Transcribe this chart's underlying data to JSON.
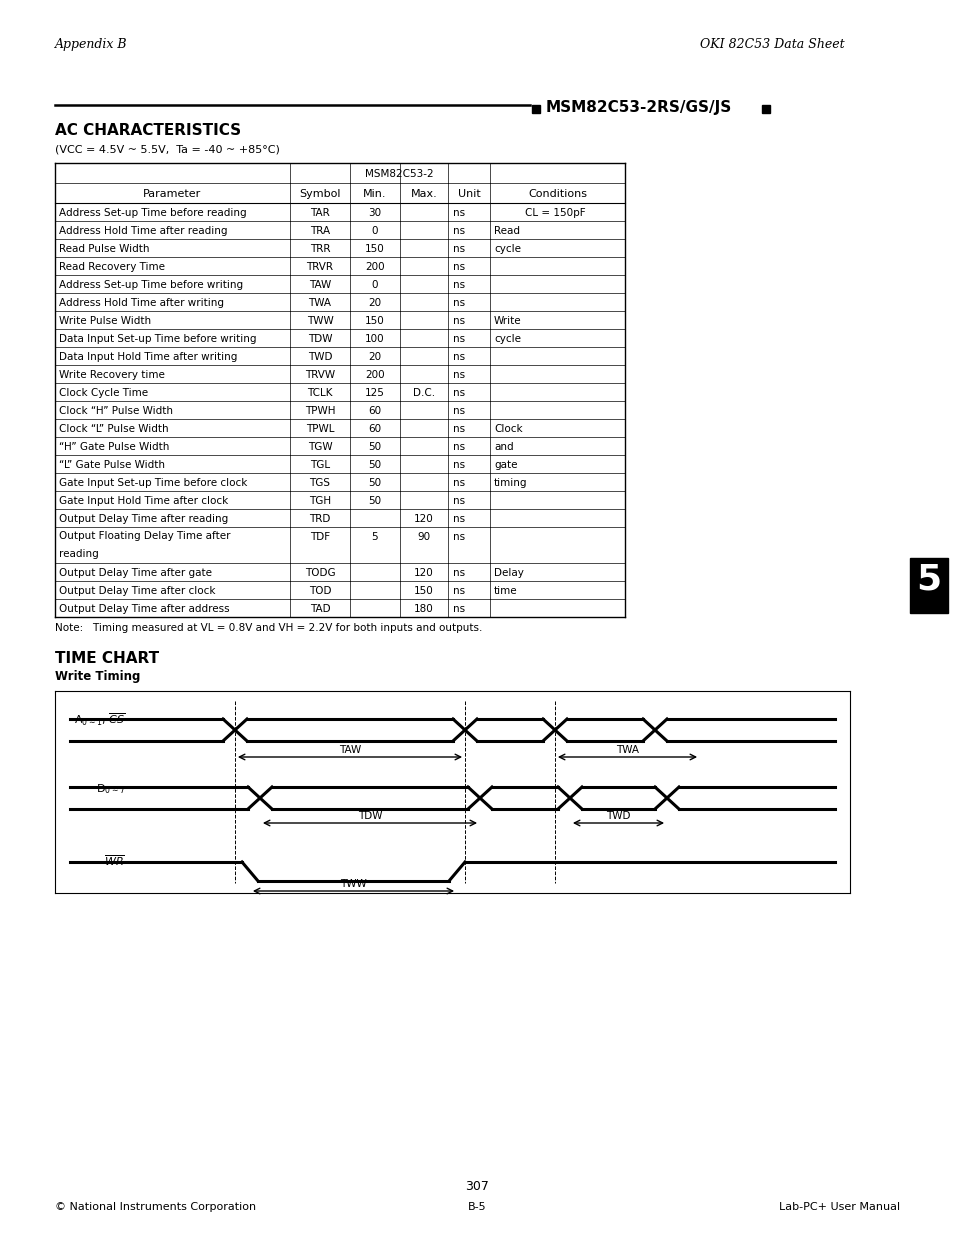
{
  "page_title_left": "Appendix B",
  "page_title_right": "OKI 82C53 Data Sheet",
  "header_line_text": "MSM82C53-2RS/GS/JS",
  "section_title": "AC CHARACTERISTICS",
  "vcc_note": "(VCC = 4.5V ~ 5.5V,  Ta = -40 ~ +85°C)",
  "table_header": [
    "Parameter",
    "Symbol",
    "Min.",
    "Max.",
    "Unit",
    "Conditions"
  ],
  "table_col_header_group": "MSM82C53-2",
  "table_rows": [
    [
      "Address Set-up Time before reading",
      "TAR",
      "30",
      "",
      "ns",
      ""
    ],
    [
      "Address Hold Time after reading",
      "TRA",
      "0",
      "",
      "ns",
      "Read"
    ],
    [
      "Read Pulse Width",
      "TRR",
      "150",
      "",
      "ns",
      "cycle"
    ],
    [
      "Read Recovery Time",
      "TRVR",
      "200",
      "",
      "ns",
      ""
    ],
    [
      "Address Set-up Time before writing",
      "TAW",
      "0",
      "",
      "ns",
      ""
    ],
    [
      "Address Hold Time after writing",
      "TWA",
      "20",
      "",
      "ns",
      ""
    ],
    [
      "Write Pulse Width",
      "TWW",
      "150",
      "",
      "ns",
      "Write"
    ],
    [
      "Data Input Set-up Time before writing",
      "TDW",
      "100",
      "",
      "ns",
      "cycle"
    ],
    [
      "Data Input Hold Time after writing",
      "TWD",
      "20",
      "",
      "ns",
      ""
    ],
    [
      "Write Recovery time",
      "TRVW",
      "200",
      "",
      "ns",
      ""
    ],
    [
      "Clock Cycle Time",
      "TCLK",
      "125",
      "D.C.",
      "ns",
      ""
    ],
    [
      "Clock “H” Pulse Width",
      "TPWH",
      "60",
      "",
      "ns",
      ""
    ],
    [
      "Clock “L” Pulse Width",
      "TPWL",
      "60",
      "",
      "ns",
      "Clock"
    ],
    [
      "“H” Gate Pulse Width",
      "TGW",
      "50",
      "",
      "ns",
      "and"
    ],
    [
      "“L” Gate Pulse Width",
      "TGL",
      "50",
      "",
      "ns",
      "gate"
    ],
    [
      "Gate Input Set-up Time before clock",
      "TGS",
      "50",
      "",
      "ns",
      "timing"
    ],
    [
      "Gate Input Hold Time after clock",
      "TGH",
      "50",
      "",
      "ns",
      ""
    ],
    [
      "Output Delay Time after reading",
      "TRD",
      "",
      "120",
      "ns",
      ""
    ],
    [
      "Output Floating Delay Time after\nreading",
      "TDF",
      "5",
      "90",
      "ns",
      ""
    ],
    [
      "Output Delay Time after gate",
      "TODG",
      "",
      "120",
      "ns",
      "Delay"
    ],
    [
      "Output Delay Time after clock",
      "TOD",
      "",
      "150",
      "ns",
      "time"
    ],
    [
      "Output Delay Time after address",
      "TAD",
      "",
      "180",
      "ns",
      ""
    ]
  ],
  "cl_note": "CL = 150pF",
  "note_text": "Note:   Timing measured at VL = 0.8V and VH = 2.2V for both inputs and outputs.",
  "timechart_title": "TIME CHART",
  "timechart_subtitle": "Write Timing",
  "footer_left": "© National Instruments Corporation",
  "footer_center": "B-5",
  "footer_right": "Lab-PC+ User Manual",
  "page_number": "307",
  "tab_number": "5",
  "bg_color": "#ffffff",
  "text_color": "#000000",
  "line_color": "#000000"
}
